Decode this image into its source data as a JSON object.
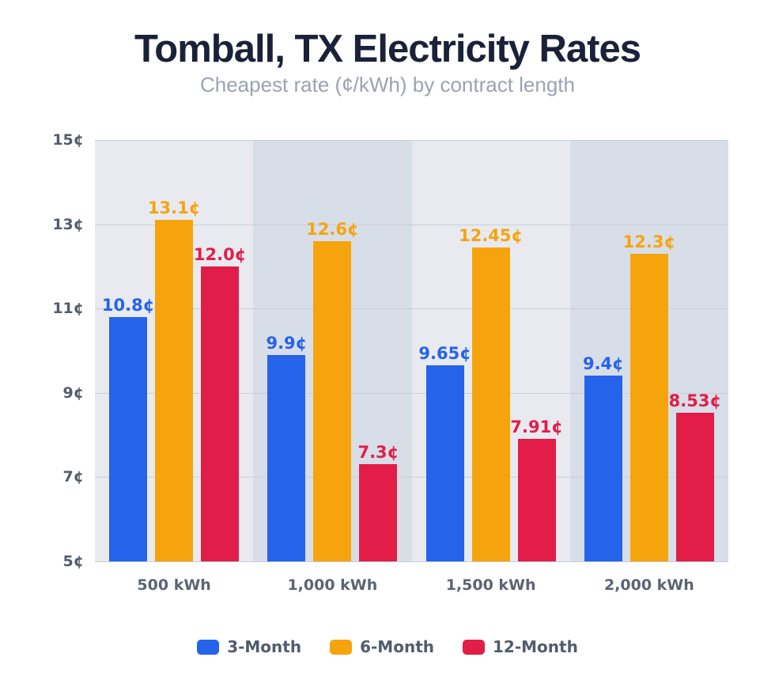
{
  "header": {
    "title": "Tomball, TX Electricity Rates",
    "subtitle": "Cheapest rate (¢/kWh) by contract length"
  },
  "chart_data": {
    "type": "bar",
    "title": "Tomball, TX Electricity Rates",
    "subtitle": "Cheapest rate (¢/kWh) by contract length",
    "categories": [
      "500 kWh",
      "1,000 kWh",
      "1,500 kWh",
      "2,000 kWh"
    ],
    "series": [
      {
        "name": "3-Month",
        "color": "#2563eb",
        "values": [
          10.8,
          9.9,
          9.65,
          9.4
        ],
        "labels": [
          "10.8¢",
          "9.9¢",
          "9.65¢",
          "9.4¢"
        ]
      },
      {
        "name": "6-Month",
        "color": "#f5a40d",
        "values": [
          13.1,
          12.6,
          12.45,
          12.3
        ],
        "labels": [
          "13.1¢",
          "12.6¢",
          "12.45¢",
          "12.3¢"
        ]
      },
      {
        "name": "12-Month",
        "color": "#e11d48",
        "values": [
          12.0,
          7.3,
          7.91,
          8.53
        ],
        "labels": [
          "12.0¢",
          "7.3¢",
          "7.91¢",
          "8.53¢"
        ]
      }
    ],
    "ylabel": "",
    "xlabel": "",
    "ylim": [
      5,
      15
    ],
    "yticks": [
      5,
      7,
      9,
      11,
      13,
      15
    ],
    "ytick_labels": [
      "5¢",
      "7¢",
      "9¢",
      "11¢",
      "13¢",
      "15¢"
    ],
    "grid": true,
    "legend_position": "bottom",
    "band_colors": [
      "#e8eaf0",
      "#d8dee8"
    ],
    "gridline_color": "#c8ced9"
  }
}
